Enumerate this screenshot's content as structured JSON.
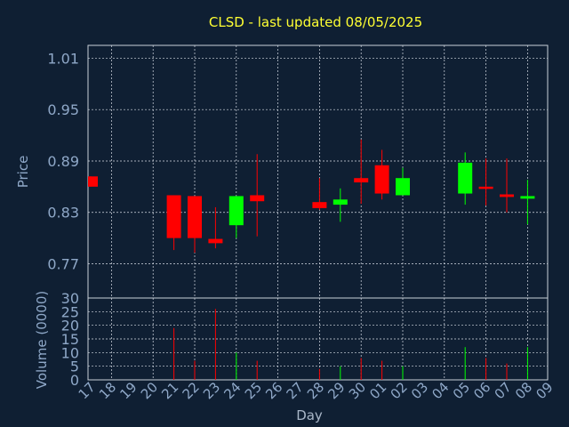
{
  "chart_data": {
    "type": "candlestick",
    "title": "CLSD - last updated 08/05/2025",
    "xlabel": "Day",
    "price_ylabel": "Price",
    "volume_ylabel": "Volume (0000)",
    "x_ticks": [
      "17",
      "18",
      "19",
      "20",
      "21",
      "22",
      "23",
      "24",
      "25",
      "26",
      "27",
      "28",
      "29",
      "30",
      "01",
      "02",
      "03",
      "04",
      "05",
      "06",
      "07",
      "08",
      "09"
    ],
    "price_ticks": [
      "1.01",
      "0.95",
      "0.89",
      "0.83",
      "0.77"
    ],
    "price_ylim": [
      0.73,
      1.025
    ],
    "volume_ticks": [
      "30",
      "25",
      "20",
      "15",
      "10",
      "5",
      "0"
    ],
    "volume_ylim": [
      0,
      30
    ],
    "up_color": "#00ff00",
    "down_color": "#ff0000",
    "candles": [
      {
        "day": "17",
        "open": 0.872,
        "close": 0.86,
        "high": 0.872,
        "low": 0.86,
        "volume": 0
      },
      {
        "day": "21",
        "open": 0.85,
        "close": 0.8,
        "high": 0.85,
        "low": 0.786,
        "volume": 19
      },
      {
        "day": "22",
        "open": 0.849,
        "close": 0.8,
        "high": 0.849,
        "low": 0.783,
        "volume": 7
      },
      {
        "day": "23",
        "open": 0.799,
        "close": 0.794,
        "high": 0.836,
        "low": 0.788,
        "volume": 26
      },
      {
        "day": "24",
        "open": 0.815,
        "close": 0.849,
        "high": 0.849,
        "low": 0.8,
        "volume": 10
      },
      {
        "day": "25",
        "open": 0.85,
        "close": 0.843,
        "high": 0.898,
        "low": 0.802,
        "volume": 7
      },
      {
        "day": "28",
        "open": 0.842,
        "close": 0.835,
        "high": 0.87,
        "low": 0.833,
        "volume": 4
      },
      {
        "day": "29",
        "open": 0.839,
        "close": 0.845,
        "high": 0.858,
        "low": 0.819,
        "volume": 5
      },
      {
        "day": "30",
        "open": 0.87,
        "close": 0.865,
        "high": 0.915,
        "low": 0.84,
        "volume": 8
      },
      {
        "day": "01",
        "open": 0.885,
        "close": 0.852,
        "high": 0.903,
        "low": 0.845,
        "volume": 7
      },
      {
        "day": "02",
        "open": 0.85,
        "close": 0.87,
        "high": 0.882,
        "low": 0.85,
        "volume": 5
      },
      {
        "day": "05",
        "open": 0.852,
        "close": 0.888,
        "high": 0.9,
        "low": 0.839,
        "volume": 12
      },
      {
        "day": "06",
        "open": 0.86,
        "close": 0.859,
        "high": 0.893,
        "low": 0.838,
        "volume": 8
      },
      {
        "day": "07",
        "open": 0.851,
        "close": 0.848,
        "high": 0.893,
        "low": 0.83,
        "volume": 6
      },
      {
        "day": "08",
        "open": 0.846,
        "close": 0.849,
        "high": 0.868,
        "low": 0.816,
        "volume": 12
      }
    ]
  }
}
